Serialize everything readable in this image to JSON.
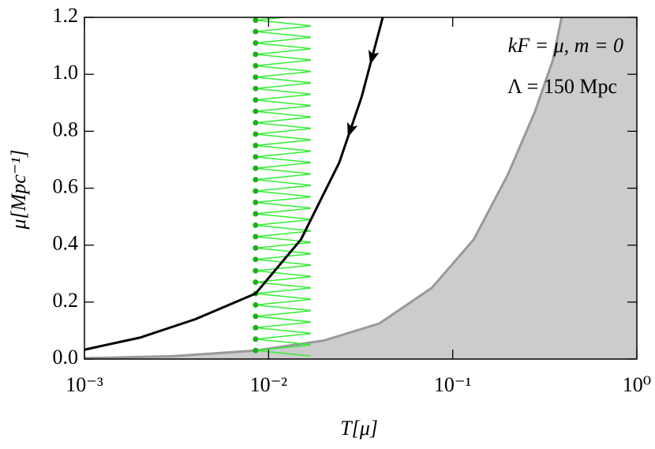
{
  "chart_data": {
    "type": "line",
    "annotations": [
      "kF = μ, m = 0",
      "Λ = 150 Mpc"
    ],
    "x_label": "T[μ]",
    "y_label": "μ[Mpc⁻¹]",
    "xscale": "log",
    "xlim": [
      0.001,
      1
    ],
    "ylim": [
      0,
      1.2
    ],
    "xticks": [
      {
        "value": 0.001,
        "label": "10⁻³"
      },
      {
        "value": 0.01,
        "label": "10⁻²"
      },
      {
        "value": 0.1,
        "label": "10⁻¹"
      },
      {
        "value": 1,
        "label": "10⁰"
      }
    ],
    "yticks": [
      {
        "value": 0,
        "label": "0.0"
      },
      0.2,
      0.4,
      0.6,
      0.8,
      {
        "value": 1,
        "label": "1.0"
      },
      1.2
    ],
    "series": [
      {
        "style": "area",
        "color": "#999999",
        "fill": "#cccccc",
        "x": [
          0.001,
          0.003,
          0.0085,
          0.02,
          0.04,
          0.077,
          0.13,
          0.2,
          0.28,
          0.35,
          0.39
        ],
        "y": [
          0.003,
          0.01,
          0.03,
          0.065,
          0.125,
          0.25,
          0.42,
          0.65,
          0.87,
          1.05,
          1.2
        ]
      },
      {
        "style": "points",
        "color": "#22aa22",
        "spike_color": "#33ee33",
        "x": [
          0.0085,
          0.0085,
          0.0085,
          0.0085,
          0.0085,
          0.0085,
          0.0085,
          0.0085,
          0.0085,
          0.0085,
          0.0085,
          0.0085,
          0.0085,
          0.0085,
          0.0085,
          0.0085,
          0.0085,
          0.0085,
          0.0085,
          0.0085,
          0.0085,
          0.0085,
          0.0085,
          0.0085,
          0.0085,
          0.0085,
          0.0085,
          0.0085,
          0.0085,
          0.0085
        ],
        "y": [
          0.03,
          0.07,
          0.11,
          0.15,
          0.19,
          0.23,
          0.27,
          0.31,
          0.35,
          0.39,
          0.43,
          0.47,
          0.51,
          0.55,
          0.59,
          0.63,
          0.67,
          0.71,
          0.75,
          0.79,
          0.83,
          0.87,
          0.91,
          0.95,
          0.99,
          1.03,
          1.07,
          1.11,
          1.15,
          1.19
        ]
      },
      {
        "style": "line",
        "color": "#000000",
        "arrows": true,
        "x": [
          0.001,
          0.002,
          0.004,
          0.0085,
          0.015,
          0.0242,
          0.032,
          0.0417
        ],
        "y": [
          0.033,
          0.075,
          0.14,
          0.23,
          0.42,
          0.69,
          0.92,
          1.2
        ]
      }
    ]
  }
}
